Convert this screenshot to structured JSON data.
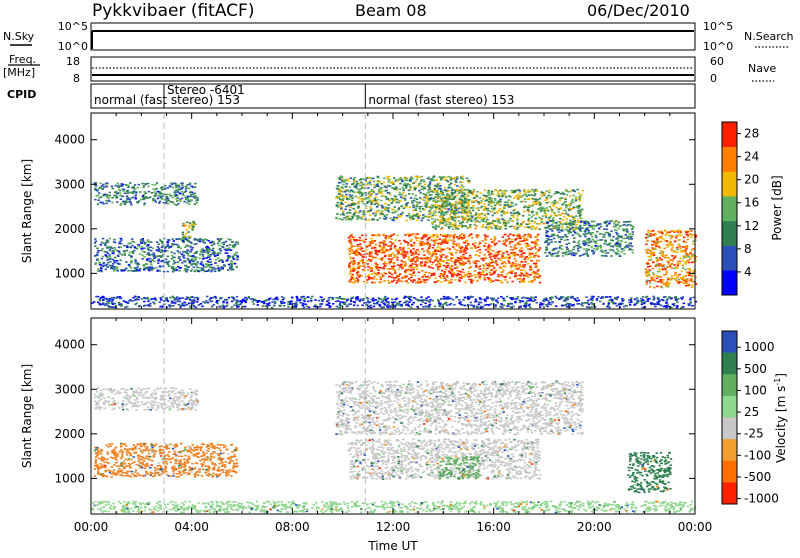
{
  "header": {
    "station": "Pykkvibaer (fitACF)",
    "beam": "Beam 08",
    "date": "06/Dec/2010"
  },
  "top_panels": {
    "nsky_label": "N.Sky",
    "nsky_ticks": [
      "10^5",
      "10^0"
    ],
    "nsearch_label": "N.Search",
    "nsearch_ticks": [
      "10^5",
      "10^0"
    ],
    "freq_label_1": "Freq.",
    "freq_label_2": "[MHz]",
    "freq_ticks": [
      "18",
      "8"
    ],
    "nave_label": "Nave",
    "nave_ticks": [
      "60",
      "0"
    ],
    "cpid_label": "CPID",
    "cpid_segments": [
      {
        "label": "normal (fast stereo) 153",
        "start_h": 0.0
      },
      {
        "label": "Stereo -6401",
        "start_h": 2.9
      },
      {
        "label": "normal (fast stereo) 153",
        "start_h": 10.9
      }
    ]
  },
  "chart_data": [
    {
      "type": "heatmap",
      "quantity": "Power",
      "ylabel": "Slant Range [km]",
      "xlabel": "Time UT",
      "x_unit": "hours UT",
      "xlim": [
        0,
        24
      ],
      "ylim": [
        200,
        4600
      ],
      "yticks": [
        1000,
        2000,
        3000,
        4000
      ],
      "colorbar_label": "Power [dB]",
      "colorbar_ticks": [
        4,
        8,
        12,
        16,
        20,
        24,
        28
      ],
      "colorbar_range": [
        0,
        30
      ],
      "colorbar_colors": [
        "#0000ff",
        "#2a4fb8",
        "#2f7f4f",
        "#60b060",
        "#f0b800",
        "#ff8000",
        "#ff2000"
      ],
      "regions": [
        {
          "t": [
            0.1,
            4.2
          ],
          "r": [
            2550,
            3050
          ],
          "level": 0.35
        },
        {
          "t": [
            0.1,
            5.8
          ],
          "r": [
            1050,
            1800
          ],
          "level": 0.3
        },
        {
          "t": [
            3.6,
            4.1
          ],
          "r": [
            1800,
            2200
          ],
          "level": 0.5
        },
        {
          "t": [
            9.7,
            15.0
          ],
          "r": [
            2200,
            3200
          ],
          "level": 0.45
        },
        {
          "t": [
            13.5,
            19.5
          ],
          "r": [
            2000,
            2900
          ],
          "level": 0.5
        },
        {
          "t": [
            10.2,
            17.8
          ],
          "r": [
            800,
            1900
          ],
          "level": 0.85
        },
        {
          "t": [
            18.0,
            21.5
          ],
          "r": [
            1400,
            2200
          ],
          "level": 0.35
        },
        {
          "t": [
            22.0,
            24.0
          ],
          "r": [
            700,
            2000
          ],
          "level": 0.75
        },
        {
          "t": [
            0.0,
            24.0
          ],
          "r": [
            250,
            500
          ],
          "level": 0.2
        }
      ]
    },
    {
      "type": "heatmap",
      "quantity": "Velocity",
      "ylabel": "Slant Range [km]",
      "xlabel": "Time UT",
      "x_unit": "hours UT",
      "xlim": [
        0,
        24
      ],
      "ylim": [
        200,
        4600
      ],
      "yticks": [
        1000,
        2000,
        3000,
        4000
      ],
      "xtick_labels": [
        "00:00",
        "04:00",
        "08:00",
        "12:00",
        "16:00",
        "20:00",
        "00:00"
      ],
      "xtick_hours": [
        0,
        4,
        8,
        12,
        16,
        20,
        24
      ],
      "colorbar_label": "Velocity [m s",
      "colorbar_label_sup": "-1",
      "colorbar_label_end": "]",
      "colorbar_ticks": [
        "1000",
        "500",
        "100",
        "25",
        "-25",
        "-100",
        "-500",
        "-1000"
      ],
      "colorbar_colors": [
        "#2a4fb8",
        "#2f7f4f",
        "#60b060",
        "#90d890",
        "#c8c8c8",
        "#f0a030",
        "#ff7000",
        "#ff2000"
      ],
      "regions": [
        {
          "t": [
            0.1,
            4.2
          ],
          "r": [
            2550,
            3050
          ],
          "color": "#c8c8c8"
        },
        {
          "t": [
            0.1,
            5.8
          ],
          "r": [
            1050,
            1800
          ],
          "color": "#f08020"
        },
        {
          "t": [
            9.7,
            19.5
          ],
          "r": [
            2000,
            3200
          ],
          "color": "#c8c8c8"
        },
        {
          "t": [
            10.2,
            17.8
          ],
          "r": [
            1000,
            1900
          ],
          "color": "#c8c8c8"
        },
        {
          "t": [
            13.8,
            15.4
          ],
          "r": [
            1000,
            1500
          ],
          "color": "#60b060"
        },
        {
          "t": [
            21.3,
            23.0
          ],
          "r": [
            700,
            1600
          ],
          "color": "#2f7f4f"
        },
        {
          "t": [
            0.0,
            24.0
          ],
          "r": [
            250,
            500
          ],
          "color": "#90d890"
        }
      ]
    }
  ]
}
